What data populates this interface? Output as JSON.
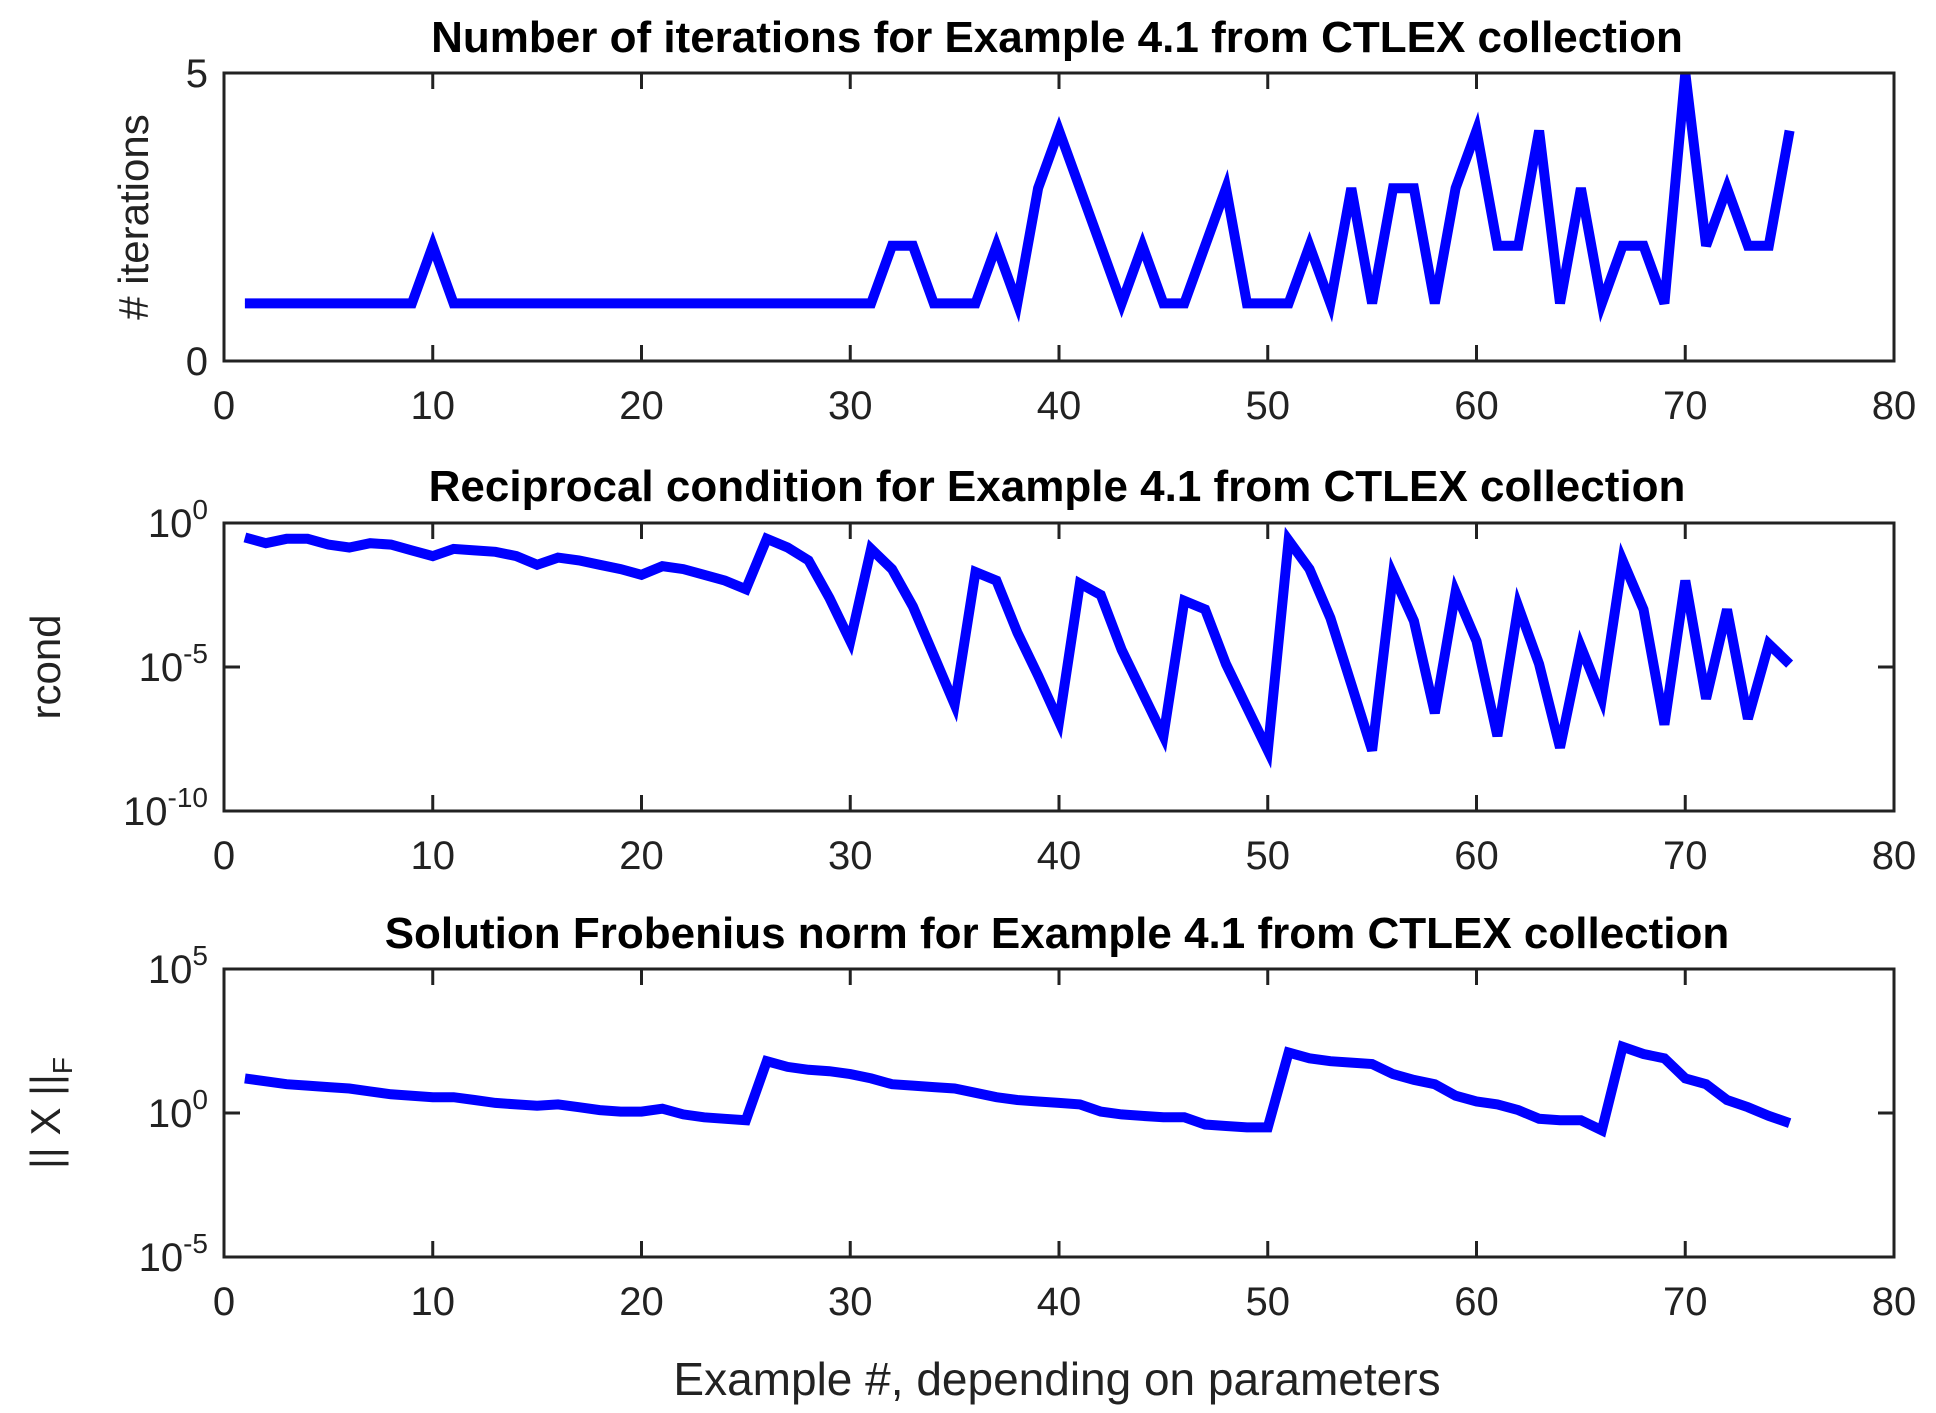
{
  "chart_data": [
    {
      "type": "line",
      "title": "Number of iterations for Example 4.1 from CTLEX collection",
      "xlabel": "",
      "ylabel": "# iterations",
      "xlim": [
        0,
        80
      ],
      "ylim": [
        0,
        5
      ],
      "yscale": "linear",
      "x_ticks": [
        0,
        10,
        20,
        30,
        40,
        50,
        60,
        70,
        80
      ],
      "y_ticks": [
        {
          "value": 0,
          "label": "0"
        },
        {
          "value": 5,
          "label": "5"
        }
      ],
      "line_color": "#0000ff",
      "grid": false,
      "x": [
        1,
        2,
        3,
        4,
        5,
        6,
        7,
        8,
        9,
        10,
        11,
        12,
        13,
        14,
        15,
        16,
        17,
        18,
        19,
        20,
        21,
        22,
        23,
        24,
        25,
        26,
        27,
        28,
        29,
        30,
        31,
        32,
        33,
        34,
        35,
        36,
        37,
        38,
        39,
        40,
        41,
        42,
        43,
        44,
        45,
        46,
        47,
        48,
        49,
        50,
        51,
        52,
        53,
        54,
        55,
        56,
        57,
        58,
        59,
        60,
        61,
        62,
        63,
        64,
        65,
        66,
        67,
        68,
        69,
        70,
        71,
        72,
        73,
        74,
        75
      ],
      "values": [
        1,
        1,
        1,
        1,
        1,
        1,
        1,
        1,
        1,
        2,
        1,
        1,
        1,
        1,
        1,
        1,
        1,
        1,
        1,
        1,
        1,
        1,
        1,
        1,
        1,
        1,
        1,
        1,
        1,
        1,
        1,
        2,
        2,
        1,
        1,
        1,
        2,
        1,
        3,
        4,
        3,
        2,
        1,
        2,
        1,
        1,
        2,
        3,
        1,
        1,
        1,
        2,
        1,
        3,
        1,
        3,
        3,
        1,
        3,
        4,
        2,
        2,
        4,
        1,
        3,
        1,
        2,
        2,
        1,
        5,
        2,
        3,
        2,
        2,
        4
      ]
    },
    {
      "type": "line",
      "title": "Reciprocal condition for Example 4.1 from CTLEX collection",
      "xlabel": "",
      "ylabel": "rcond",
      "xlim": [
        0,
        80
      ],
      "ylim_exp": [
        -10,
        0
      ],
      "yscale": "log",
      "x_ticks": [
        0,
        10,
        20,
        30,
        40,
        50,
        60,
        70,
        80
      ],
      "y_ticks": [
        {
          "exp": 0,
          "base": "10",
          "sup": "0"
        },
        {
          "exp": -5,
          "base": "10",
          "sup": "-5"
        },
        {
          "exp": -10,
          "base": "10",
          "sup": "-10"
        }
      ],
      "line_color": "#0000ff",
      "grid": false,
      "x": [
        1,
        2,
        3,
        4,
        5,
        6,
        7,
        8,
        9,
        10,
        11,
        12,
        13,
        14,
        15,
        16,
        17,
        18,
        19,
        20,
        21,
        22,
        23,
        24,
        25,
        26,
        27,
        28,
        29,
        30,
        31,
        32,
        33,
        34,
        35,
        36,
        37,
        38,
        39,
        40,
        41,
        42,
        43,
        44,
        45,
        46,
        47,
        48,
        49,
        50,
        51,
        52,
        53,
        54,
        55,
        56,
        57,
        58,
        59,
        60,
        61,
        62,
        63,
        64,
        65,
        66,
        67,
        68,
        69,
        70,
        71,
        72,
        73,
        74,
        75
      ],
      "log10_values": [
        -0.5,
        -0.7,
        -0.55,
        -0.55,
        -0.75,
        -0.85,
        -0.7,
        -0.75,
        -0.95,
        -1.15,
        -0.9,
        -0.95,
        -1.0,
        -1.15,
        -1.45,
        -1.2,
        -1.3,
        -1.45,
        -1.6,
        -1.8,
        -1.5,
        -1.6,
        -1.8,
        -2.0,
        -2.3,
        -0.55,
        -0.85,
        -1.3,
        -2.6,
        -4.1,
        -0.9,
        -1.6,
        -2.9,
        -4.6,
        -6.3,
        -1.7,
        -2.0,
        -3.8,
        -5.3,
        -6.9,
        -2.1,
        -2.5,
        -4.4,
        -5.9,
        -7.4,
        -2.7,
        -3.0,
        -4.9,
        -6.4,
        -7.9,
        -0.6,
        -1.6,
        -3.3,
        -5.6,
        -7.9,
        -1.8,
        -3.4,
        -6.6,
        -2.4,
        -4.1,
        -7.4,
        -2.9,
        -4.9,
        -7.8,
        -4.3,
        -6.1,
        -1.3,
        -3.0,
        -7.0,
        -2.0,
        -6.1,
        -3.0,
        -6.8,
        -4.2,
        -4.9
      ]
    },
    {
      "type": "line",
      "title": "Solution Frobenius norm for Example 4.1 from CTLEX collection",
      "xlabel": "Example #, depending on parameters",
      "ylabel": "|| X ||F",
      "ylabel_parts": {
        "main": "|| X ||",
        "sub": "F"
      },
      "xlim": [
        0,
        80
      ],
      "ylim_exp": [
        -5,
        5
      ],
      "yscale": "log",
      "x_ticks": [
        0,
        10,
        20,
        30,
        40,
        50,
        60,
        70,
        80
      ],
      "y_ticks": [
        {
          "exp": 5,
          "base": "10",
          "sup": "5"
        },
        {
          "exp": 0,
          "base": "10",
          "sup": "0"
        },
        {
          "exp": -5,
          "base": "10",
          "sup": "-5"
        }
      ],
      "line_color": "#0000ff",
      "grid": false,
      "x": [
        1,
        2,
        3,
        4,
        5,
        6,
        7,
        8,
        9,
        10,
        11,
        12,
        13,
        14,
        15,
        16,
        17,
        18,
        19,
        20,
        21,
        22,
        23,
        24,
        25,
        26,
        27,
        28,
        29,
        30,
        31,
        32,
        33,
        34,
        35,
        36,
        37,
        38,
        39,
        40,
        41,
        42,
        43,
        44,
        45,
        46,
        47,
        48,
        49,
        50,
        51,
        52,
        53,
        54,
        55,
        56,
        57,
        58,
        59,
        60,
        61,
        62,
        63,
        64,
        65,
        66,
        67,
        68,
        69,
        70,
        71,
        72,
        73,
        74,
        75
      ],
      "log10_values": [
        1.2,
        1.1,
        1.0,
        0.95,
        0.9,
        0.85,
        0.75,
        0.65,
        0.6,
        0.55,
        0.55,
        0.45,
        0.35,
        0.3,
        0.25,
        0.3,
        0.2,
        0.1,
        0.05,
        0.05,
        0.15,
        -0.05,
        -0.15,
        -0.2,
        -0.25,
        1.8,
        1.6,
        1.5,
        1.45,
        1.35,
        1.2,
        1.0,
        0.95,
        0.9,
        0.85,
        0.7,
        0.55,
        0.45,
        0.4,
        0.35,
        0.3,
        0.05,
        -0.05,
        -0.1,
        -0.15,
        -0.15,
        -0.4,
        -0.45,
        -0.5,
        -0.5,
        2.1,
        1.9,
        1.8,
        1.75,
        1.7,
        1.35,
        1.15,
        1.0,
        0.6,
        0.4,
        0.3,
        0.1,
        -0.2,
        -0.25,
        -0.25,
        -0.6,
        2.3,
        2.05,
        1.9,
        1.2,
        1.0,
        0.45,
        0.2,
        -0.1,
        -0.35
      ]
    }
  ]
}
